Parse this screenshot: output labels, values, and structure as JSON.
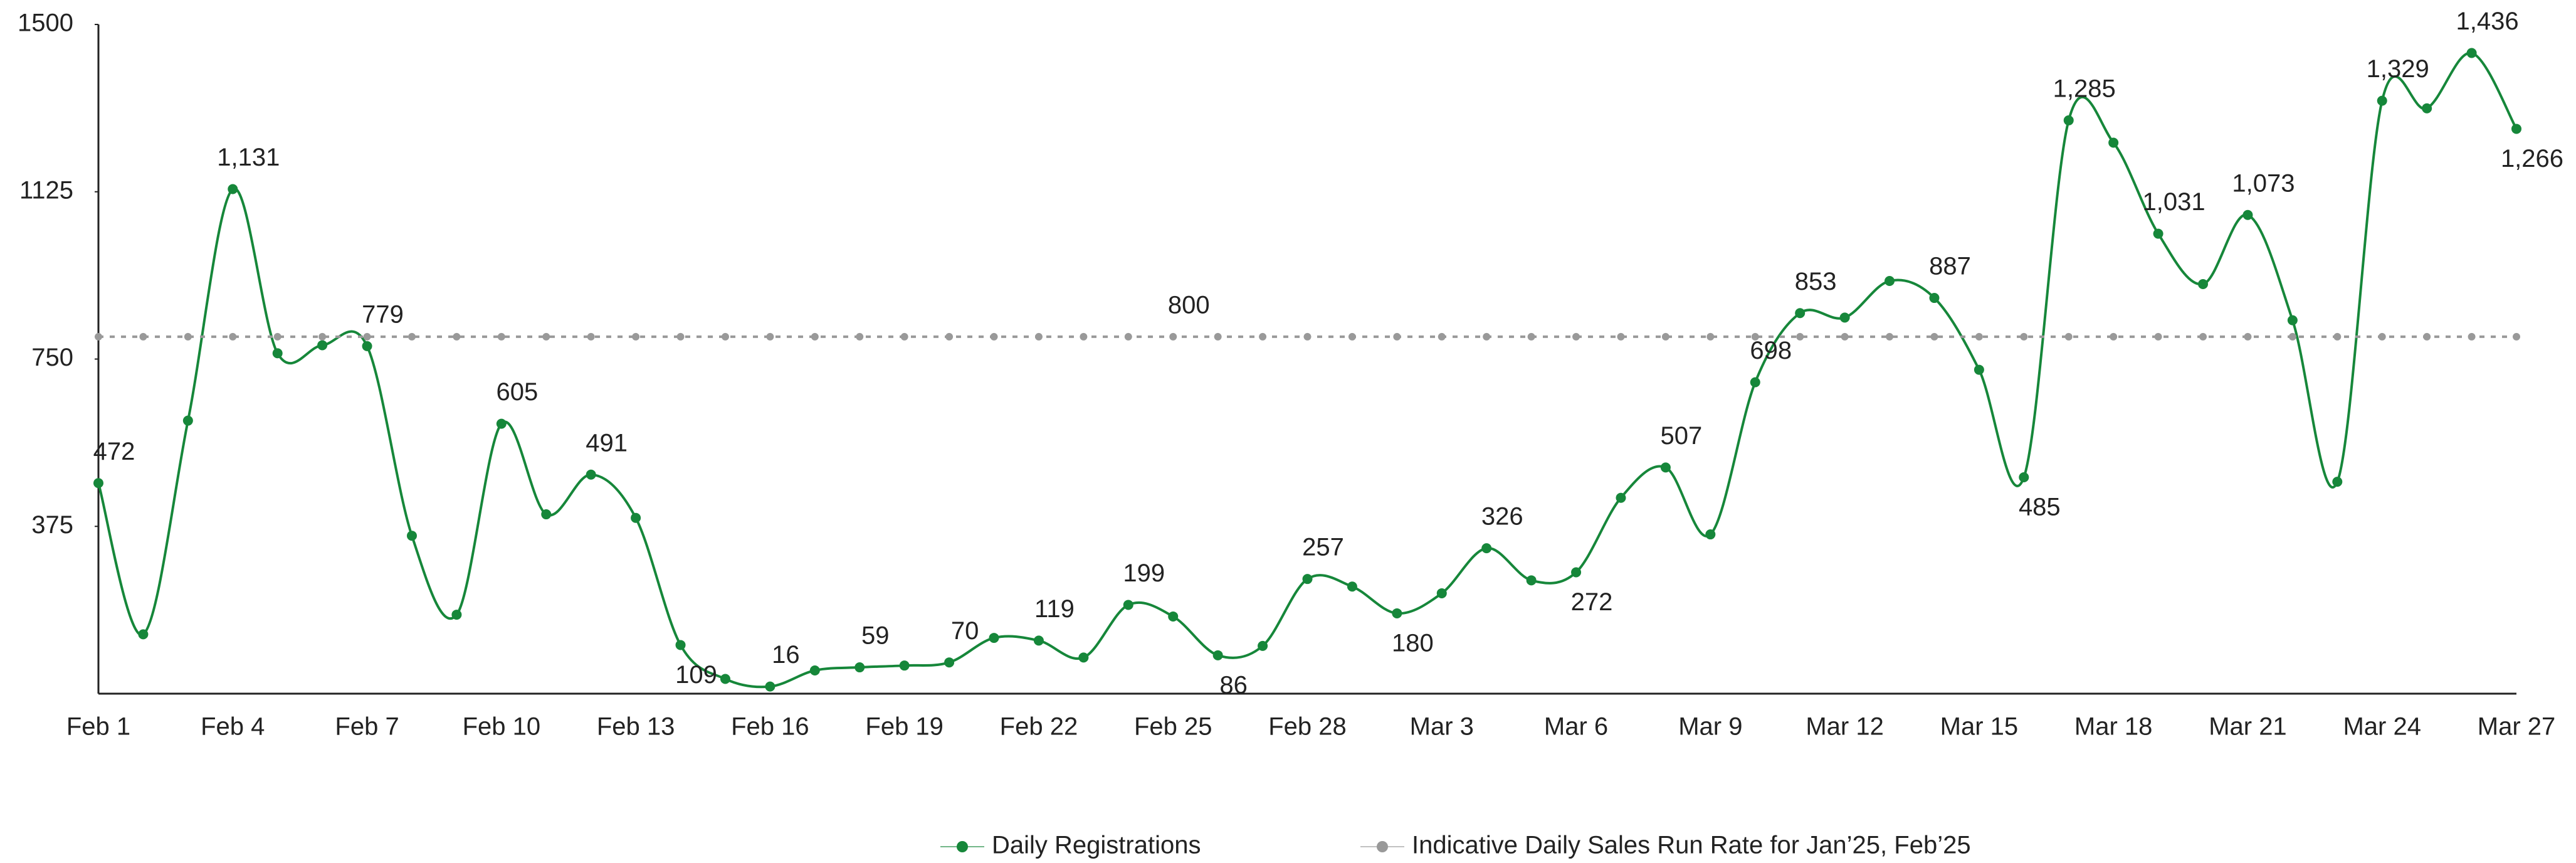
{
  "chart_data": {
    "type": "line",
    "categories": [
      "Feb 1",
      null,
      null,
      "Feb 4",
      null,
      null,
      "Feb 7",
      null,
      null,
      "Feb 10",
      null,
      null,
      "Feb 13",
      null,
      null,
      "Feb 16",
      null,
      null,
      "Feb 19",
      null,
      null,
      "Feb 22",
      null,
      null,
      "Feb 25",
      null,
      null,
      "Feb 28",
      null,
      null,
      "Mar 3",
      null,
      null,
      "Mar 6",
      null,
      null,
      "Mar 9",
      null,
      null,
      "Mar 12",
      null,
      null,
      "Mar 15",
      null,
      null,
      "Mar 18",
      null,
      null,
      "Mar 21",
      null,
      null,
      "Mar 24",
      null,
      null,
      "Mar 27"
    ],
    "series": [
      {
        "name": "Daily Registrations",
        "color": "#16873a",
        "smooth": true,
        "values": [
          472,
          133,
          612,
          1131,
          763,
          781,
          779,
          354,
          177,
          605,
          402,
          491,
          394,
          109,
          33,
          16,
          52,
          59,
          63,
          70,
          125,
          119,
          81,
          199,
          173,
          86,
          107,
          257,
          240,
          180,
          225,
          326,
          254,
          272,
          439,
          507,
          357,
          698,
          853,
          843,
          925,
          887,
          726,
          485,
          1285,
          1235,
          1031,
          918,
          1073,
          837,
          475,
          1329,
          1312,
          1436,
          1266
        ],
        "value_labels": [
          "472",
          null,
          null,
          "1,131",
          null,
          null,
          "779",
          null,
          null,
          "605",
          null,
          "491",
          null,
          "109",
          null,
          "16",
          null,
          "59",
          null,
          "70",
          null,
          "119",
          null,
          "199",
          null,
          "86",
          null,
          "257",
          null,
          "180",
          null,
          "326",
          null,
          "272",
          null,
          "507",
          null,
          "698",
          "853",
          null,
          null,
          "887",
          null,
          "485",
          "1,285",
          null,
          "1,031",
          null,
          "1,073",
          null,
          null,
          "1,329",
          null,
          "1,436",
          "1,266"
        ]
      },
      {
        "name": "Indicative Daily Sales Run Rate for Jan’25, Feb’25",
        "color": "#999999",
        "dashed": true,
        "values": [
          800,
          800,
          800,
          800,
          800,
          800,
          800,
          800,
          800,
          800,
          800,
          800,
          800,
          800,
          800,
          800,
          800,
          800,
          800,
          800,
          800,
          800,
          800,
          800,
          800,
          800,
          800,
          800,
          800,
          800,
          800,
          800,
          800,
          800,
          800,
          800,
          800,
          800,
          800,
          800,
          800,
          800,
          800,
          800,
          800,
          800,
          800,
          800,
          800,
          800,
          800,
          800,
          800,
          800,
          800
        ],
        "value_labels": [
          null,
          null,
          null,
          null,
          null,
          null,
          null,
          null,
          null,
          null,
          null,
          null,
          null,
          null,
          null,
          null,
          null,
          null,
          null,
          null,
          null,
          null,
          null,
          null,
          "800",
          null,
          null,
          null,
          null,
          null,
          null,
          null,
          null,
          null,
          null,
          null,
          null,
          null,
          null,
          null,
          null,
          null,
          null,
          null,
          null,
          null,
          null,
          null,
          null,
          null,
          null,
          null,
          null,
          null,
          null
        ]
      }
    ],
    "ylim": [
      0,
      1500
    ],
    "yticks": [
      375,
      750,
      1125,
      1500
    ],
    "grid": false,
    "legend": "bottom"
  }
}
